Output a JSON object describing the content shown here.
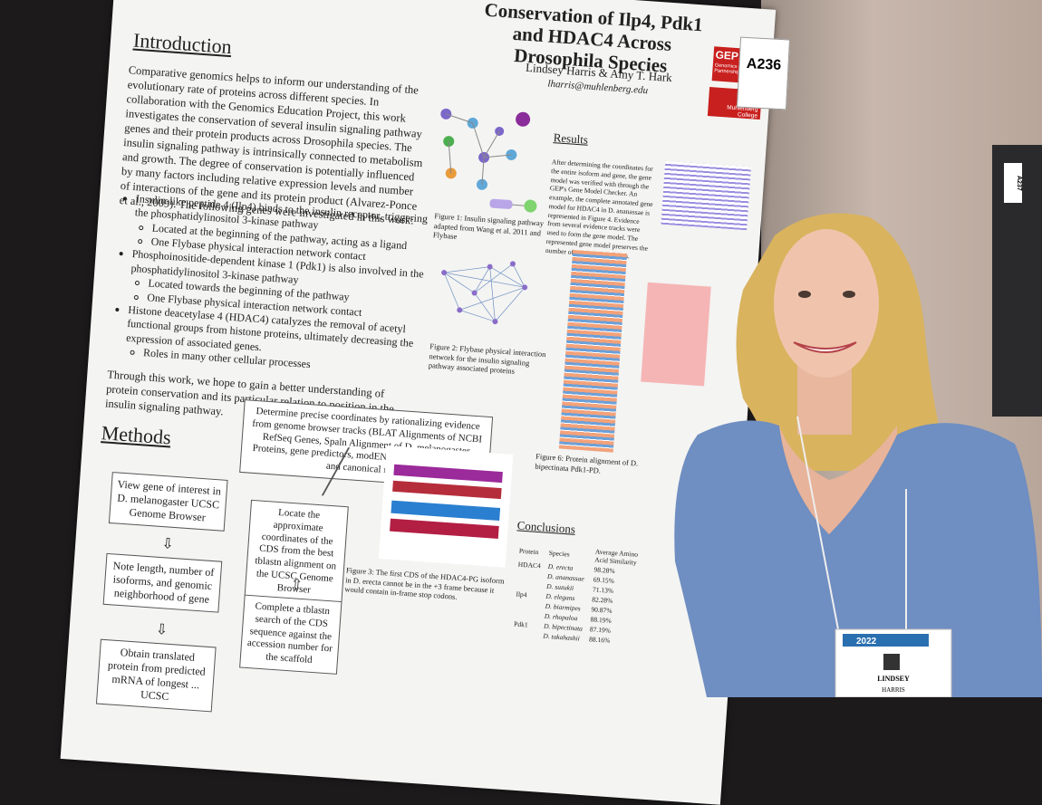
{
  "sign": "A236",
  "neighbor_sign": "A237",
  "poster": {
    "title": "Conservation of Ilp4, Pdk1 and HDAC4 Across Drosophila Species",
    "authors": "Lindsey Harris & Amy T. Hark",
    "email": "lharris@muhlenberg.edu",
    "logos": [
      "GEP",
      "Genomics Education Partnership",
      "Muhlenberg College"
    ],
    "introduction": {
      "heading": "Introduction",
      "paragraph": "Comparative genomics helps to inform our understanding of the evolutionary rate of proteins across different species. In collaboration with the Genomics Education Project, this work investigates the conservation of several insulin signaling pathway genes and their protein products across Drosophila species. The insulin signaling pathway is intrinsically connected to metabolism and growth. The degree of conservation is potentially influenced by many factors including relative expression levels and number of interactions of the gene and its protein product (Alvarez-Ponce et al., 2009). The following genes were investigated in this work:",
      "bullets": [
        {
          "text": "Insulin-like peptide 4 (Ilp4) binds to the insulin receptor, triggering the phosphatidylinositol 3-kinase pathway",
          "sub": [
            "Located at the beginning of the pathway, acting as a ligand",
            "One Flybase physical interaction network contact"
          ]
        },
        {
          "text": "Phosphoinositide-dependent kinase 1 (Pdk1) is also involved in the phosphatidylinositol 3-kinase pathway",
          "sub": [
            "Located towards the beginning of the pathway",
            "One Flybase physical interaction network contact"
          ]
        },
        {
          "text": "Histone deacetylase 4 (HDAC4) catalyzes the removal of acetyl functional groups from histone proteins, ultimately decreasing the expression of associated genes.",
          "sub": [
            "Roles in many other cellular processes"
          ]
        }
      ],
      "closing": "Through this work, we hope to gain a better understanding of protein conservation and its particular relation to position in the insulin signaling pathway."
    },
    "methods": {
      "heading": "Methods",
      "evidence_box": "Determine precise coordinates by rationalizing evidence from genome browser tracks (BLAT Alignments of NCBI RefSeq Genes, Spaln Alignment of D. melanogaster Proteins, gene predictors, modENCODE RNA-Seq, etc.) and canonical rules",
      "steps": [
        "View gene of interest in D. melanogaster UCSC Genome Browser",
        "Note length, number of isoforms, and genomic neighborhood of gene",
        "Obtain translated protein from predicted mRNA of longest ... UCSC",
        "Locate the approximate coordinates of the CDS from the best tblastn alignment on the UCSC Genome Browser",
        "Complete a tblastn search of the CDS sequence against the accession number for the scaffold"
      ]
    },
    "figures": [
      "Figure 1: Insulin signaling pathway adapted from Wang et al. 2011 and Flybase",
      "Figure 2: Flybase physical interaction network for the insulin signaling pathway associated proteins",
      "Figure 3: The first CDS of the HDAC4-PG isoform in D. erecta cannot be in the +3 frame because it would contain in-frame stop codons.",
      "Figure 6: Protein alignment of D. bipectinata Pdk1-PD."
    ],
    "results": {
      "heading": "Results",
      "text": "After determining the coordinates for the entire isoform and gene, the gene model was verified with through the GEP's Gene Model Checker. An example, the complete annotated gene model for HDAC4 in D. ananassae is represented in Figure 4. Evidence from several evidence tracks were used to form the gene model. The represented gene model preserves the number of exons and isoforms."
    },
    "conclusions": {
      "heading": "Conclusions",
      "columns": [
        "Protein",
        "Species",
        "Average Amino Acid Similarity"
      ],
      "rows": [
        [
          "HDAC4",
          "D. erecta",
          "98.28%"
        ],
        [
          "",
          "D. ananassae",
          "69.15%"
        ],
        [
          "",
          "D. suzukii",
          "71.13%"
        ],
        [
          "Ilp4",
          "D. elegans",
          "82.28%"
        ],
        [
          "",
          "D. biarmipes",
          "90.87%"
        ],
        [
          "",
          "D. rhopaloa",
          "88.19%"
        ],
        [
          "Pdk1",
          "D. bipectinata",
          "87.19%"
        ],
        [
          "",
          "D. takahashii",
          "88.16%"
        ]
      ]
    }
  },
  "badge": {
    "year": "2022",
    "first_name": "LINDSEY",
    "last_name": "HARRIS"
  }
}
